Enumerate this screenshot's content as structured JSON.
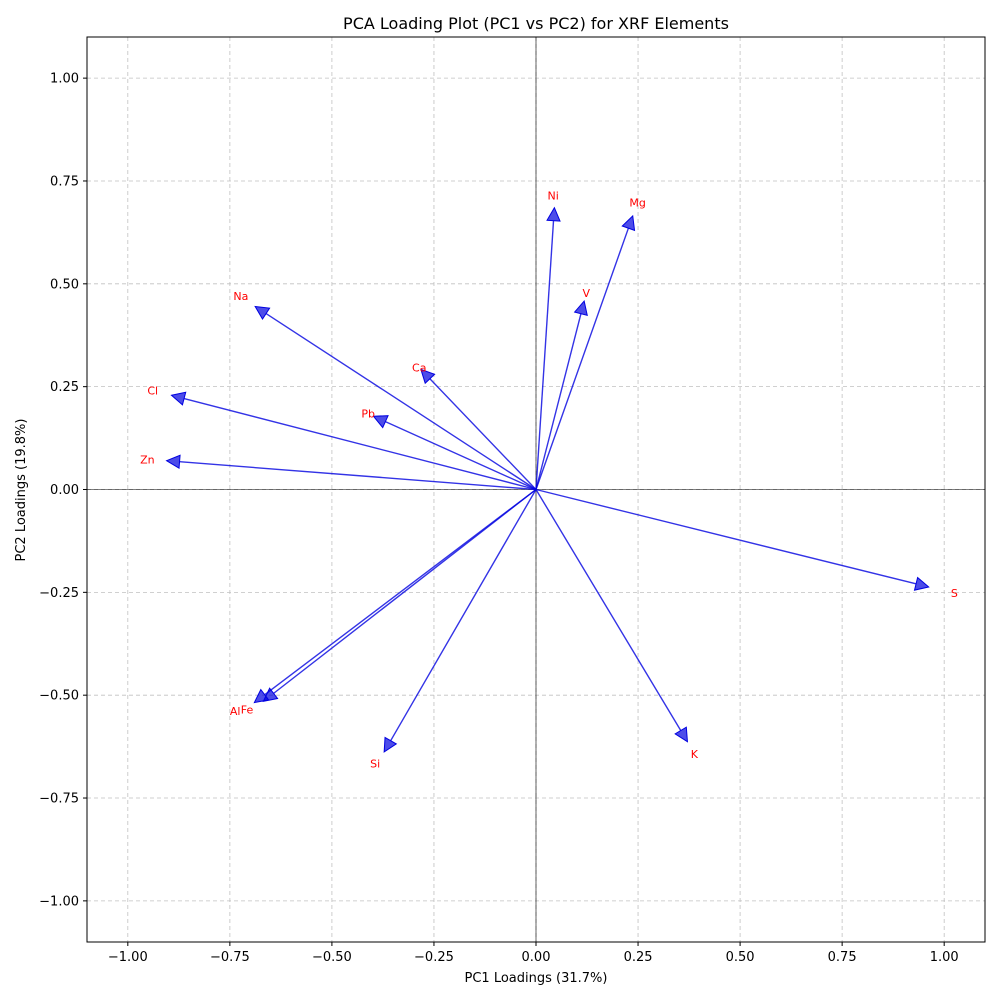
{
  "chart_data": {
    "type": "scatter",
    "title": "PCA Loading Plot (PC1 vs PC2) for XRF Elements",
    "xlabel": "PC1 Loadings (31.7%)",
    "ylabel": "PC2 Loadings (19.8%)",
    "xlim": [
      -1.1,
      1.1
    ],
    "ylim": [
      -1.1,
      1.1
    ],
    "xticks": [
      -1.0,
      -0.75,
      -0.5,
      -0.25,
      0.0,
      0.25,
      0.5,
      0.75,
      1.0
    ],
    "yticks": [
      -1.0,
      -0.75,
      -0.5,
      -0.25,
      0.0,
      0.25,
      0.5,
      0.75,
      1.0
    ],
    "xtick_labels": [
      "−1.00",
      "−0.75",
      "−0.50",
      "−0.25",
      "0.00",
      "0.25",
      "0.50",
      "0.75",
      "1.00"
    ],
    "ytick_labels": [
      "−1.00",
      "−0.75",
      "−0.50",
      "−0.25",
      "0.00",
      "0.25",
      "0.50",
      "0.75",
      "1.00"
    ],
    "grid": true,
    "arrow_color": "#0000e0",
    "label_color": "#ff0000",
    "vectors": [
      {
        "name": "Ni",
        "x": 0.045,
        "y": 0.685,
        "label_x": 0.042,
        "label_y": 0.715
      },
      {
        "name": "Mg",
        "x": 0.237,
        "y": 0.665,
        "label_x": 0.249,
        "label_y": 0.698
      },
      {
        "name": "V",
        "x": 0.118,
        "y": 0.458,
        "label_x": 0.123,
        "label_y": 0.478
      },
      {
        "name": "Na",
        "x": -0.688,
        "y": 0.445,
        "label_x": -0.723,
        "label_y": 0.47
      },
      {
        "name": "Ca",
        "x": -0.282,
        "y": 0.292,
        "label_x": -0.286,
        "label_y": 0.297
      },
      {
        "name": "Cl",
        "x": -0.893,
        "y": 0.229,
        "label_x": -0.939,
        "label_y": 0.241
      },
      {
        "name": "Pb",
        "x": -0.398,
        "y": 0.178,
        "label_x": -0.411,
        "label_y": 0.185
      },
      {
        "name": "Zn",
        "x": -0.905,
        "y": 0.07,
        "label_x": -0.952,
        "label_y": 0.073
      },
      {
        "name": "S",
        "x": 0.962,
        "y": -0.237,
        "label_x": 1.025,
        "label_y": -0.252
      },
      {
        "name": "Al",
        "x": -0.69,
        "y": -0.518,
        "label_x": -0.737,
        "label_y": -0.538
      },
      {
        "name": "Fe",
        "x": -0.668,
        "y": -0.515,
        "label_x": -0.708,
        "label_y": -0.535
      },
      {
        "name": "Si",
        "x": -0.372,
        "y": -0.638,
        "label_x": -0.394,
        "label_y": -0.666
      },
      {
        "name": "K",
        "x": 0.371,
        "y": -0.613,
        "label_x": 0.388,
        "label_y": -0.643
      }
    ]
  }
}
